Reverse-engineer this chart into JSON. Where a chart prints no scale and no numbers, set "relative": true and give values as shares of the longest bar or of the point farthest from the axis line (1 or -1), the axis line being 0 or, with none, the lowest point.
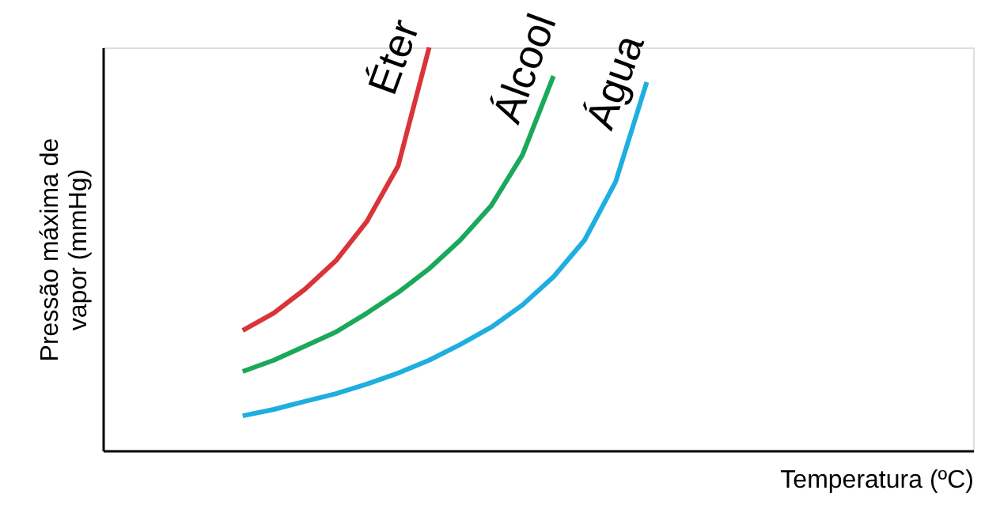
{
  "chart_data": {
    "type": "line",
    "relative": true,
    "xlabel": "Temperatura (ºC)",
    "ylabel": "Pressão máxima de vapor (mmHg)",
    "categories": [
      null,
      null,
      null,
      null,
      null,
      null,
      null,
      null,
      null,
      null,
      null,
      null,
      null,
      null,
      null,
      null,
      null,
      null,
      null,
      null,
      null,
      null,
      null,
      null,
      null,
      null,
      null,
      null
    ],
    "tick_labels": false,
    "grid": false,
    "legend": false,
    "marker": "none",
    "line_style": "solid",
    "series": [
      {
        "name": "Éter",
        "color": "#d9343a",
        "values": [
          null,
          null,
          null,
          null,
          0.298,
          0.341,
          0.4,
          0.471,
          0.569,
          0.706,
          1,
          null,
          null,
          null,
          null,
          null,
          null,
          null,
          null,
          null,
          null,
          null,
          null,
          null,
          null,
          null,
          null,
          null
        ]
      },
      {
        "name": "Álcool",
        "color": "#1aa85a",
        "values": [
          null,
          null,
          null,
          null,
          0.196,
          0.224,
          0.259,
          0.294,
          0.341,
          0.392,
          0.451,
          0.522,
          0.608,
          0.733,
          0.929,
          null,
          null,
          null,
          null,
          null,
          null,
          null,
          null,
          null,
          null,
          null,
          null,
          null
        ]
      },
      {
        "name": "Água",
        "color": "#1eaee0",
        "values": [
          null,
          null,
          null,
          null,
          0.086,
          0.102,
          0.122,
          0.141,
          0.165,
          0.192,
          0.224,
          0.263,
          0.306,
          0.361,
          0.431,
          0.522,
          0.667,
          0.914,
          null,
          null,
          null,
          null,
          null,
          null,
          null,
          null,
          null,
          null
        ]
      }
    ]
  }
}
